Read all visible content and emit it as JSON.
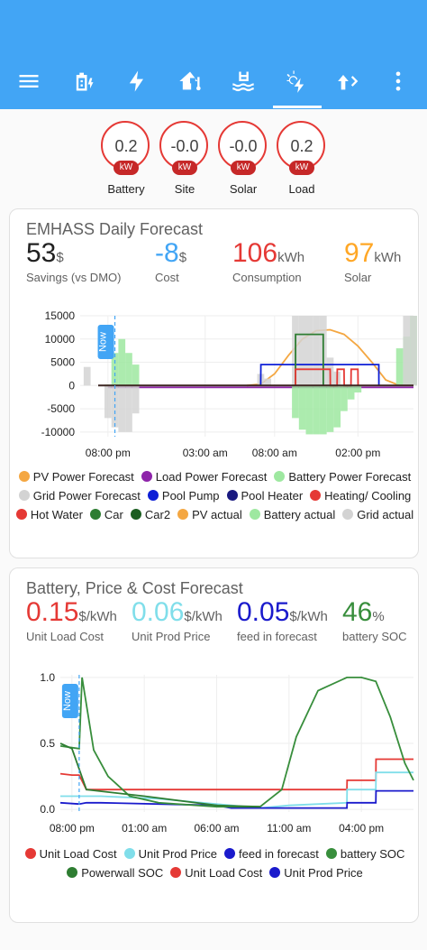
{
  "tabs": [
    {
      "icon": "menu-icon"
    },
    {
      "icon": "battery-charging-icon"
    },
    {
      "icon": "lightning-icon"
    },
    {
      "icon": "home-thermometer-icon"
    },
    {
      "icon": "pool-icon"
    },
    {
      "icon": "weather-power-icon"
    },
    {
      "icon": "forward-arrow-icon"
    },
    {
      "icon": "more-vertical-icon"
    }
  ],
  "gauges": [
    {
      "value": "0.2",
      "unit": "kW",
      "label": "Battery"
    },
    {
      "value": "-0.0",
      "unit": "kW",
      "label": "Site"
    },
    {
      "value": "-0.0",
      "unit": "kW",
      "label": "Solar"
    },
    {
      "value": "0.2",
      "unit": "kW",
      "label": "Load"
    }
  ],
  "forecast_card": {
    "title": "EMHASS Daily Forecast",
    "stats": [
      {
        "value": "53",
        "unit": "$",
        "label": "Savings (vs DMO)",
        "color": "#212121"
      },
      {
        "value": "-8",
        "unit": "$",
        "label": "Cost",
        "color": "#42a5f5"
      },
      {
        "value": "106",
        "unit": "kWh",
        "label": "Consumption",
        "color": "#e53935"
      },
      {
        "value": "97",
        "unit": "kWh",
        "label": "Solar",
        "color": "#ffa726"
      }
    ],
    "now_label": "Now",
    "legend": [
      {
        "label": "PV Power Forecast",
        "color": "#f4a742"
      },
      {
        "label": "Load Power Forecast",
        "color": "#8e24aa"
      },
      {
        "label": "Battery Power Forecast",
        "color": "#9ee8a0"
      },
      {
        "label": "Grid Power Forecast",
        "color": "#d3d3d3"
      },
      {
        "label": "Pool Pump",
        "color": "#0d1fd6"
      },
      {
        "label": "Pool Heater",
        "color": "#1a1a80"
      },
      {
        "label": "Heating/ Cooling",
        "color": "#e53935"
      },
      {
        "label": "Hot Water",
        "color": "#e53935"
      },
      {
        "label": "Car",
        "color": "#2e7d32"
      },
      {
        "label": "Car2",
        "color": "#1b5e20"
      },
      {
        "label": "PV actual",
        "color": "#f4a742"
      },
      {
        "label": "Battery actual",
        "color": "#9ee8a0"
      },
      {
        "label": "Grid actual",
        "color": "#d3d3d3"
      }
    ]
  },
  "price_card": {
    "title": "Battery, Price & Cost Forecast",
    "stats": [
      {
        "value": "0.15",
        "unit": "$/kWh",
        "label": "Unit Load Cost",
        "color": "#e53935"
      },
      {
        "value": "0.06",
        "unit": "$/kWh",
        "label": "Unit Prod Price",
        "color": "#80deea"
      },
      {
        "value": "0.05",
        "unit": "$/kWh",
        "label": "feed in forecast",
        "color": "#1a1acc"
      },
      {
        "value": "46",
        "unit": "%",
        "label": "battery SOC",
        "color": "#388e3c"
      }
    ],
    "now_label": "Now",
    "legend": [
      {
        "label": "Unit Load Cost",
        "color": "#e53935"
      },
      {
        "label": "Unit Prod Price",
        "color": "#80deea"
      },
      {
        "label": "feed in forecast",
        "color": "#1a1acc"
      },
      {
        "label": "battery SOC",
        "color": "#388e3c"
      },
      {
        "label": "Powerwall SOC",
        "color": "#2e7d32"
      },
      {
        "label": "Unit Load Cost",
        "color": "#e53935"
      },
      {
        "label": "Unit Prod Price",
        "color": "#1a1acc"
      }
    ]
  },
  "chart_data": [
    {
      "type": "area",
      "title": "",
      "xlabel": "",
      "ylabel": "",
      "x_tick_labels": [
        "08:00 pm",
        "03:00 am",
        "08:00 am",
        "02:00 pm"
      ],
      "x_ticks_hours": [
        20,
        27,
        32,
        38
      ],
      "y_ticks": [
        15000,
        10000,
        5000,
        0,
        -5000,
        -10000
      ],
      "y_tick_labels": [
        "15000",
        "10000",
        "5000",
        "0",
        "-5000",
        "-10000"
      ],
      "ylim": [
        -11000,
        15000
      ],
      "xlim_hours": [
        18,
        42
      ],
      "now_hour": 20.5,
      "series": [
        {
          "name": "PV Power Forecast",
          "kind": "line",
          "color": "#f4a742",
          "x": [
            30,
            31,
            32,
            33,
            34,
            35,
            36,
            37,
            38,
            39,
            40,
            41
          ],
          "y": [
            0,
            300,
            2500,
            6500,
            10000,
            11800,
            12000,
            11000,
            8500,
            5000,
            1200,
            0
          ]
        },
        {
          "name": "Load Power Forecast",
          "kind": "line",
          "color": "#8e24aa",
          "x": [
            20,
            25,
            30,
            35,
            40,
            42
          ],
          "y": [
            -400,
            -400,
            -400,
            -400,
            -400,
            -400
          ]
        },
        {
          "name": "Battery Power Forecast",
          "kind": "bar",
          "color": "#9ee8a0",
          "x": [
            20.0,
            20.5,
            21.0,
            21.5,
            22.0,
            33.5,
            34.0,
            34.5,
            35.0,
            35.5,
            36.0,
            36.5,
            37.0,
            37.5,
            38.0,
            41.0,
            41.5,
            42.0
          ],
          "y": [
            200,
            7000,
            10000,
            7000,
            4500,
            -7000,
            -9500,
            -10500,
            -10500,
            -10500,
            -10000,
            -9000,
            -5500,
            -3000,
            -1500,
            8000,
            10500,
            15000
          ]
        },
        {
          "name": "Grid Power Forecast",
          "kind": "bar",
          "color": "#d3d3d3",
          "x": [
            18.5,
            20.0,
            20.5,
            21.0,
            21.5,
            22.0,
            31.0,
            31.5,
            33.5,
            34.0,
            34.5,
            35.0,
            35.5,
            36.0,
            36.5,
            41.5,
            42.0
          ],
          "y": [
            4000,
            -7000,
            -9000,
            -10000,
            -10000,
            -6000,
            2500,
            1500,
            15000,
            15000,
            15000,
            15000,
            15000,
            6000,
            3000,
            15000,
            15000
          ]
        },
        {
          "name": "Pool Pump",
          "kind": "line",
          "color": "#0d1fd6",
          "x": [
            31,
            31.01,
            39.5,
            39.51
          ],
          "y": [
            0,
            4500,
            4500,
            0
          ]
        },
        {
          "name": "Car",
          "kind": "line",
          "color": "#2e7d32",
          "x": [
            33.5,
            33.51,
            35.5,
            35.51
          ],
          "y": [
            0,
            11000,
            11000,
            0
          ]
        },
        {
          "name": "Hot Water",
          "kind": "line",
          "color": "#e53935",
          "x": [
            33.5,
            33.51,
            36.0,
            36.01,
            36.5,
            36.51,
            37.0,
            37.01,
            37.5,
            37.51,
            38.0,
            38.01
          ],
          "y": [
            0,
            3500,
            3500,
            0,
            0,
            3500,
            3500,
            0,
            0,
            3500,
            3500,
            0
          ]
        }
      ]
    },
    {
      "type": "line",
      "title": "",
      "xlabel": "",
      "ylabel": "",
      "x_tick_labels": [
        "08:00 pm",
        "01:00 am",
        "06:00 am",
        "11:00 am",
        "04:00 pm"
      ],
      "x_ticks_hours": [
        20,
        25,
        30,
        35,
        40
      ],
      "y_ticks": [
        1.0,
        0.5,
        0.0
      ],
      "y_tick_labels": [
        "1.0",
        "0.5",
        "0.0"
      ],
      "ylim": [
        -0.02,
        1.02
      ],
      "xlim_hours": [
        19.2,
        43.6
      ],
      "now_hour": 20.5,
      "series": [
        {
          "name": "Unit Load Cost",
          "color": "#e53935",
          "x": [
            19.2,
            20.0,
            20.5,
            21.0,
            22.0,
            22.01,
            35.0,
            39.0,
            39.01,
            41.0,
            41.01,
            43.6
          ],
          "y": [
            0.27,
            0.26,
            0.26,
            0.15,
            0.15,
            0.15,
            0.15,
            0.15,
            0.22,
            0.22,
            0.38,
            0.38
          ]
        },
        {
          "name": "Unit Prod Price",
          "color": "#80deea",
          "x": [
            19.2,
            22.0,
            26.0,
            31.0,
            33.0,
            35.0,
            39.0,
            39.01,
            41.0,
            41.01,
            43.6
          ],
          "y": [
            0.1,
            0.1,
            0.08,
            0.03,
            0.01,
            0.03,
            0.05,
            0.15,
            0.15,
            0.28,
            0.28
          ]
        },
        {
          "name": "feed in forecast",
          "color": "#1a1acc",
          "x": [
            19.2,
            20.5,
            21.0,
            22.0,
            30.0,
            31.0,
            35.0,
            39.0,
            39.01,
            41.0,
            41.01,
            43.6
          ],
          "y": [
            0.05,
            0.04,
            0.05,
            0.05,
            0.03,
            0.01,
            0.01,
            0.01,
            0.05,
            0.05,
            0.14,
            0.14
          ]
        },
        {
          "name": "battery SOC",
          "color": "#388e3c",
          "x": [
            19.2,
            20.5,
            20.7,
            21.5,
            22.5,
            24.0,
            26.0,
            30.0,
            33.0,
            34.5,
            35.5,
            37.0,
            39.0,
            40.0,
            41.0,
            42.0,
            43.0,
            43.6
          ],
          "y": [
            0.48,
            0.46,
            1.0,
            0.45,
            0.25,
            0.1,
            0.05,
            0.02,
            0.02,
            0.15,
            0.55,
            0.9,
            1.0,
            1.0,
            0.97,
            0.7,
            0.35,
            0.22
          ]
        },
        {
          "name": "Powerwall SOC",
          "color": "#2e7d32",
          "x": [
            19.2,
            20.0,
            21.0,
            25.0,
            30.0,
            33.0
          ],
          "y": [
            0.5,
            0.46,
            0.15,
            0.1,
            0.03,
            0.02
          ]
        }
      ]
    }
  ]
}
